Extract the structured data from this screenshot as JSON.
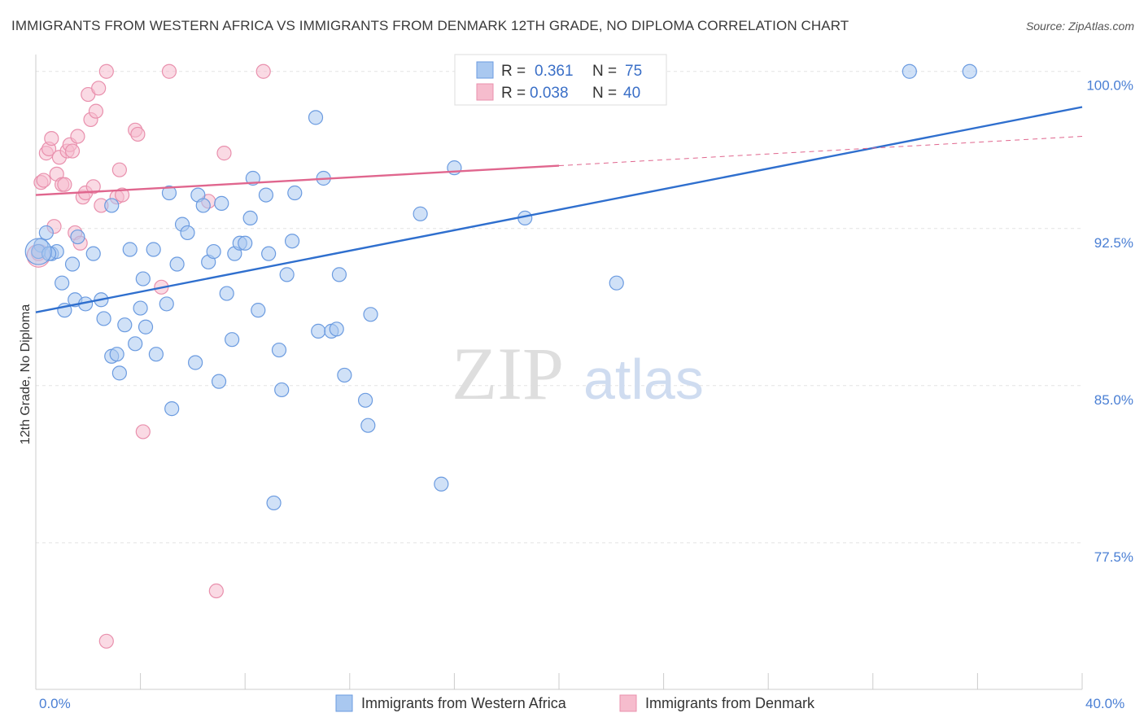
{
  "title": "IMMIGRANTS FROM WESTERN AFRICA VS IMMIGRANTS FROM DENMARK 12TH GRADE, NO DIPLOMA CORRELATION CHART",
  "source": "Source: ZipAtlas.com",
  "watermark": {
    "zip": "ZIP",
    "atlas": "atlas"
  },
  "colors": {
    "blue_fill": "#a9c8f0",
    "blue_stroke": "#6b9be0",
    "blue_line": "#2f6fce",
    "pink_fill": "#f6bccd",
    "pink_stroke": "#e990ad",
    "pink_line": "#e0668e",
    "tick_text": "#4a7fd4",
    "grid": "#e3e3e3"
  },
  "legend": {
    "r_label": "R =",
    "n_label": "N =",
    "blue": {
      "r": "0.361",
      "n": "75"
    },
    "pink": {
      "r": "0.038",
      "n": "40"
    }
  },
  "chart_data": {
    "type": "scatter",
    "title": "IMMIGRANTS FROM WESTERN AFRICA VS IMMIGRANTS FROM DENMARK 12TH GRADE, NO DIPLOMA CORRELATION CHART",
    "xlabel": "",
    "ylabel": "12th Grade, No Diploma",
    "xlim": [
      0,
      40
    ],
    "ylim": [
      70.5,
      101
    ],
    "x_tick_labels": [
      "0.0%",
      "40.0%"
    ],
    "y_ticks": [
      {
        "value": 100,
        "label": "100.0%"
      },
      {
        "value": 92.5,
        "label": "92.5%"
      },
      {
        "value": 85,
        "label": "85.0%"
      },
      {
        "value": 77.5,
        "label": "77.5%"
      }
    ],
    "grid": true,
    "legend_position": "top-center",
    "series": [
      {
        "name": "Immigrants from Western Africa",
        "color": "blue",
        "trend": {
          "x": [
            0,
            40
          ],
          "y": [
            88.5,
            98.3
          ]
        },
        "points": [
          [
            0.2,
            91.7
          ],
          [
            0.4,
            92.3
          ],
          [
            0.6,
            91.3
          ],
          [
            0.8,
            91.4
          ],
          [
            1.0,
            89.9
          ],
          [
            1.1,
            88.6
          ],
          [
            1.4,
            90.8
          ],
          [
            1.6,
            92.1
          ],
          [
            1.5,
            89.1
          ],
          [
            1.9,
            88.9
          ],
          [
            2.2,
            91.3
          ],
          [
            2.5,
            89.1
          ],
          [
            2.6,
            88.2
          ],
          [
            2.9,
            86.4
          ],
          [
            3.1,
            86.5
          ],
          [
            3.2,
            85.6
          ],
          [
            3.4,
            87.9
          ],
          [
            3.6,
            91.5
          ],
          [
            3.8,
            87.0
          ],
          [
            4.0,
            88.7
          ],
          [
            4.1,
            90.1
          ],
          [
            4.2,
            87.8
          ],
          [
            4.5,
            91.5
          ],
          [
            4.6,
            86.5
          ],
          [
            5.0,
            88.9
          ],
          [
            5.1,
            94.2
          ],
          [
            5.2,
            83.9
          ],
          [
            5.4,
            90.8
          ],
          [
            5.6,
            92.7
          ],
          [
            5.8,
            92.3
          ],
          [
            6.1,
            86.1
          ],
          [
            6.2,
            94.1
          ],
          [
            6.4,
            93.6
          ],
          [
            6.6,
            90.9
          ],
          [
            6.8,
            91.4
          ],
          [
            7.0,
            85.2
          ],
          [
            7.1,
            93.7
          ],
          [
            7.3,
            89.4
          ],
          [
            7.5,
            87.2
          ],
          [
            7.6,
            91.3
          ],
          [
            7.8,
            91.8
          ],
          [
            8.0,
            91.8
          ],
          [
            8.2,
            93.0
          ],
          [
            8.3,
            94.9
          ],
          [
            8.5,
            88.6
          ],
          [
            8.8,
            94.1
          ],
          [
            8.9,
            91.3
          ],
          [
            9.1,
            79.4
          ],
          [
            9.3,
            86.7
          ],
          [
            9.4,
            84.8
          ],
          [
            9.6,
            90.3
          ],
          [
            9.8,
            91.9
          ],
          [
            9.9,
            94.2
          ],
          [
            10.7,
            97.8
          ],
          [
            10.8,
            87.6
          ],
          [
            11.0,
            94.9
          ],
          [
            11.3,
            87.6
          ],
          [
            11.5,
            87.7
          ],
          [
            11.6,
            90.3
          ],
          [
            11.8,
            85.5
          ],
          [
            12.6,
            84.3
          ],
          [
            12.7,
            83.1
          ],
          [
            12.8,
            88.4
          ],
          [
            14.7,
            93.2
          ],
          [
            15.5,
            80.3
          ],
          [
            16.0,
            95.4
          ],
          [
            16.9,
            100.0
          ],
          [
            18.7,
            93.0
          ],
          [
            19.1,
            100.0
          ],
          [
            22.2,
            89.9
          ],
          [
            33.4,
            100.0
          ],
          [
            35.7,
            100.0
          ],
          [
            0.1,
            91.4
          ],
          [
            0.5,
            91.3
          ],
          [
            2.9,
            93.6
          ]
        ]
      },
      {
        "name": "Immigrants from Denmark",
        "color": "pink",
        "trend": {
          "x": [
            0,
            20
          ],
          "y": [
            94.1,
            95.5
          ],
          "extension": {
            "x": [
              20,
              40
            ],
            "y": [
              95.5,
              96.9
            ]
          }
        },
        "points": [
          [
            0.1,
            91.3
          ],
          [
            0.2,
            94.7
          ],
          [
            0.3,
            94.8
          ],
          [
            0.4,
            96.1
          ],
          [
            0.5,
            96.3
          ],
          [
            0.6,
            96.8
          ],
          [
            0.7,
            92.6
          ],
          [
            0.8,
            95.1
          ],
          [
            0.9,
            95.9
          ],
          [
            1.0,
            94.6
          ],
          [
            1.1,
            94.6
          ],
          [
            1.2,
            96.2
          ],
          [
            1.3,
            96.5
          ],
          [
            1.4,
            96.2
          ],
          [
            1.5,
            92.3
          ],
          [
            1.6,
            96.9
          ],
          [
            1.7,
            91.8
          ],
          [
            1.8,
            94.0
          ],
          [
            1.9,
            94.2
          ],
          [
            2.0,
            98.9
          ],
          [
            2.1,
            97.7
          ],
          [
            2.2,
            94.5
          ],
          [
            2.3,
            98.1
          ],
          [
            2.4,
            99.2
          ],
          [
            2.5,
            93.6
          ],
          [
            2.7,
            100.0
          ],
          [
            3.1,
            94.0
          ],
          [
            3.2,
            95.3
          ],
          [
            3.3,
            94.1
          ],
          [
            3.8,
            97.2
          ],
          [
            3.9,
            97.0
          ],
          [
            4.1,
            82.8
          ],
          [
            4.8,
            89.7
          ],
          [
            5.1,
            100.0
          ],
          [
            6.6,
            93.8
          ],
          [
            6.9,
            75.2
          ],
          [
            7.2,
            96.1
          ],
          [
            8.7,
            100.0
          ],
          [
            2.7,
            72.8
          ],
          [
            19.1,
            100.0
          ]
        ]
      }
    ]
  },
  "bottom_legend": {
    "blue_label": "Immigrants from Western Africa",
    "pink_label": "Immigrants from Denmark"
  }
}
